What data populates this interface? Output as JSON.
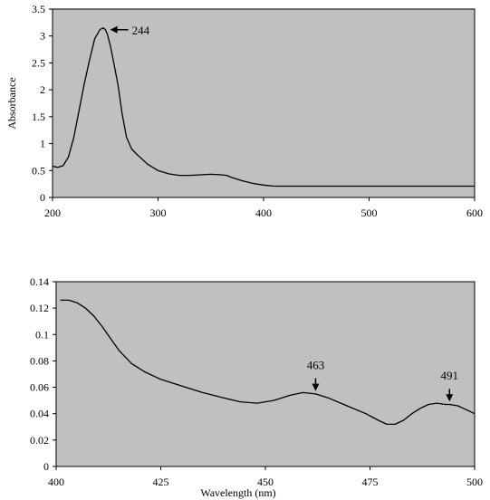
{
  "chart_data": [
    {
      "type": "line",
      "title": "",
      "xlabel": "",
      "ylabel": "Absorbance",
      "xlim": [
        200,
        600
      ],
      "ylim": [
        0,
        3.5
      ],
      "xticks": [
        "200",
        "300",
        "400",
        "500",
        "600"
      ],
      "yticks": [
        "0",
        "0.5",
        "1",
        "1.5",
        "2",
        "2.5",
        "3",
        "3.5"
      ],
      "grid": false,
      "background": "#c0c0c0",
      "line_color": "#000000",
      "series": [
        {
          "x": [
            200,
            205,
            210,
            215,
            220,
            225,
            230,
            235,
            240,
            245,
            248,
            250,
            252,
            255,
            258,
            262,
            266,
            270,
            275,
            280,
            290,
            300,
            310,
            320,
            330,
            340,
            350,
            360,
            365,
            370,
            380,
            390,
            400,
            410,
            420,
            440,
            460,
            480,
            500,
            520,
            540,
            560,
            580,
            600
          ],
          "y": [
            0.58,
            0.56,
            0.59,
            0.75,
            1.1,
            1.6,
            2.1,
            2.55,
            2.95,
            3.12,
            3.15,
            3.12,
            3.03,
            2.8,
            2.5,
            2.1,
            1.55,
            1.12,
            0.9,
            0.8,
            0.62,
            0.5,
            0.44,
            0.41,
            0.41,
            0.42,
            0.43,
            0.42,
            0.41,
            0.37,
            0.31,
            0.26,
            0.23,
            0.21,
            0.21,
            0.21,
            0.21,
            0.21,
            0.21,
            0.21,
            0.21,
            0.21,
            0.21,
            0.21
          ]
        }
      ],
      "annotations": [
        {
          "text": "244",
          "x": 252,
          "y": 3.15,
          "arrow": "left"
        }
      ]
    },
    {
      "type": "line",
      "title": "",
      "xlabel": "Wavelength (nm)",
      "ylabel": "",
      "xlim": [
        400,
        500
      ],
      "ylim": [
        0,
        0.14
      ],
      "xticks": [
        "400",
        "425",
        "450",
        "475",
        "500"
      ],
      "yticks": [
        "0",
        "0.02",
        "0.04",
        "0.06",
        "0.08",
        "0.1",
        "0.12",
        "0.14"
      ],
      "grid": false,
      "background": "#c0c0c0",
      "line_color": "#000000",
      "series": [
        {
          "x": [
            401,
            403,
            405,
            407,
            409,
            411,
            413,
            415,
            418,
            421,
            425,
            430,
            435,
            440,
            444,
            448,
            452,
            456,
            459,
            462,
            465,
            468,
            471,
            474,
            477,
            479,
            481,
            483,
            485,
            487,
            489,
            491,
            493,
            494,
            496,
            498,
            500
          ],
          "y": [
            0.126,
            0.126,
            0.124,
            0.12,
            0.114,
            0.106,
            0.097,
            0.088,
            0.078,
            0.072,
            0.066,
            0.061,
            0.056,
            0.052,
            0.049,
            0.048,
            0.05,
            0.054,
            0.056,
            0.055,
            0.052,
            0.048,
            0.044,
            0.04,
            0.035,
            0.032,
            0.032,
            0.035,
            0.04,
            0.044,
            0.047,
            0.048,
            0.047,
            0.047,
            0.046,
            0.043,
            0.04
          ]
        }
      ],
      "annotations": [
        {
          "text": "463",
          "x": 462,
          "y": 0.06,
          "arrow": "down"
        },
        {
          "text": "491",
          "x": 494,
          "y": 0.052,
          "arrow": "down"
        }
      ]
    }
  ]
}
